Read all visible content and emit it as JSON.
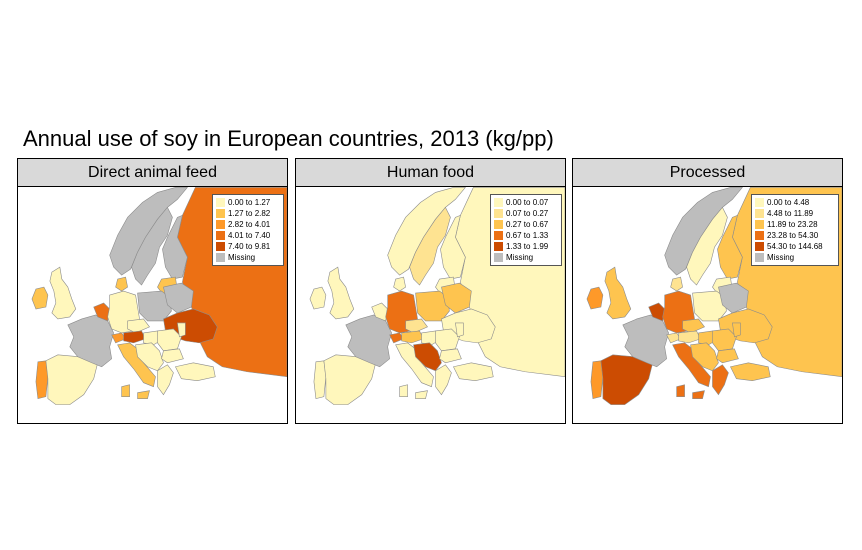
{
  "title": "Annual use of soy in European countries, 2013 (kg/pp)",
  "colors": {
    "missing": "#bdbdbd",
    "scale": [
      "#fff7bc",
      "#fee391",
      "#fec44f",
      "#fe9929",
      "#ec7014",
      "#cc4c02"
    ]
  },
  "panels": [
    {
      "name": "Direct animal feed",
      "legend": [
        "0.00 to 1.27",
        "1.27 to 2.82",
        "2.82 to 4.01",
        "4.01 to 7.40",
        "7.40 to 9.81",
        "Missing"
      ],
      "legend_colors": [
        "#fff7bc",
        "#fec44f",
        "#fe9929",
        "#ec7014",
        "#cc4c02",
        "#bdbdbd"
      ],
      "countries": {
        "Portugal": "#fe9929",
        "Spain": "#fff7bc",
        "France": "#bdbdbd",
        "Ireland": "#fec44f",
        "United Kingdom": "#fff7bc",
        "Benelux": "#ec7014",
        "Germany": "#fff7bc",
        "Denmark": "#fec44f",
        "Norway": "#bdbdbd",
        "Sweden": "#bdbdbd",
        "Finland": "#bdbdbd",
        "Baltics": "#fec44f",
        "Poland": "#bdbdbd",
        "Belarus": "#bdbdbd",
        "Ukraine": "#cc4c02",
        "Russia": "#ec7014",
        "Czechia": "#fff7bc",
        "Austria": "#cc4c02",
        "Switzerland": "#fe9929",
        "Italy": "#fec44f",
        "Hungary": "#fff7bc",
        "Romania": "#fff7bc",
        "Balkans": "#fff7bc",
        "Bulgaria": "#fff7bc",
        "Greece": "#fff7bc",
        "Turkey": "#fff7bc",
        "Moldova": "#fff7bc"
      }
    },
    {
      "name": "Human food",
      "legend": [
        "0.00 to 0.07",
        "0.07 to 0.27",
        "0.27 to 0.67",
        "0.67 to 1.33",
        "1.33 to 1.99",
        "Missing"
      ],
      "legend_colors": [
        "#fff7bc",
        "#fee391",
        "#fec44f",
        "#ec7014",
        "#cc4c02",
        "#bdbdbd"
      ],
      "countries": {
        "Portugal": "#fff7bc",
        "Spain": "#fff7bc",
        "France": "#bdbdbd",
        "Ireland": "#fff7bc",
        "United Kingdom": "#fff7bc",
        "Benelux": "#fff7bc",
        "Germany": "#ec7014",
        "Denmark": "#fff7bc",
        "Norway": "#fff7bc",
        "Sweden": "#fee391",
        "Finland": "#fff7bc",
        "Baltics": "#fff7bc",
        "Poland": "#fec44f",
        "Belarus": "#fec44f",
        "Ukraine": "#fff7bc",
        "Russia": "#fff7bc",
        "Czechia": "#fee391",
        "Austria": "#fec44f",
        "Switzerland": "#ec7014",
        "Italy": "#fff7bc",
        "Hungary": "#fff7bc",
        "Romania": "#fff7bc",
        "Balkans": "#cc4c02",
        "Bulgaria": "#fff7bc",
        "Greece": "#fff7bc",
        "Turkey": "#fff7bc",
        "Moldova": "#fff7bc"
      }
    },
    {
      "name": "Processed",
      "legend": [
        "0.00 to 4.48",
        "4.48 to 11.89",
        "11.89 to 23.28",
        "23.28 to 54.30",
        "54.30 to 144.68",
        "Missing"
      ],
      "legend_colors": [
        "#fff7bc",
        "#fee391",
        "#fec44f",
        "#ec7014",
        "#cc4c02",
        "#bdbdbd"
      ],
      "countries": {
        "Portugal": "#fe9929",
        "Spain": "#cc4c02",
        "France": "#bdbdbd",
        "Ireland": "#fe9929",
        "United Kingdom": "#fec44f",
        "Benelux": "#cc4c02",
        "Germany": "#ec7014",
        "Denmark": "#fee391",
        "Norway": "#bdbdbd",
        "Sweden": "#fff7bc",
        "Finland": "#fec44f",
        "Baltics": "#fff7bc",
        "Poland": "#fff7bc",
        "Belarus": "#bdbdbd",
        "Ukraine": "#fec44f",
        "Russia": "#fec44f",
        "Czechia": "#fec44f",
        "Austria": "#fee391",
        "Switzerland": "#fee391",
        "Italy": "#ec7014",
        "Hungary": "#fec44f",
        "Romania": "#fec44f",
        "Balkans": "#fec44f",
        "Bulgaria": "#fec44f",
        "Greece": "#ec7014",
        "Turkey": "#fec44f",
        "Moldova": "#fec44f"
      }
    }
  ]
}
